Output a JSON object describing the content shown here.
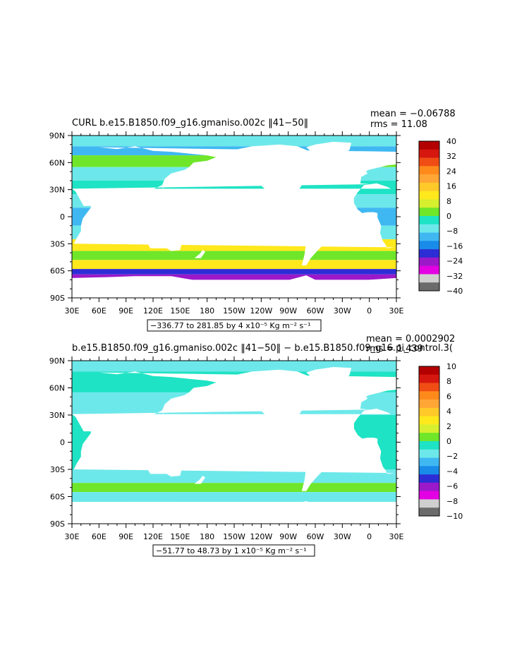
{
  "chart_data": [
    {
      "type": "heatmap",
      "title": "CURL b.e15.B1850.f09_g16.gmaniso.002c ‖41−50‖",
      "stats": [
        "mean = −0.06788",
        "rms = 11.08"
      ],
      "xticks": [
        "30E",
        "60E",
        "90E",
        "120E",
        "150E",
        "180",
        "150W",
        "120W",
        "90W",
        "60W",
        "30W",
        "0",
        "30E"
      ],
      "yticks": [
        "90N",
        "60N",
        "30N",
        "0",
        "30S",
        "60S",
        "90S"
      ],
      "xlim": [
        30,
        390
      ],
      "ylim": [
        -90,
        90
      ],
      "colorbar_labels": [
        "40",
        "32",
        "24",
        "16",
        "8",
        "0",
        "−8",
        "−16",
        "−24",
        "−32",
        "−40"
      ],
      "colorbar_range": [
        -40,
        40
      ],
      "contour_info": "−336.77 to 281.85 by 4 x10⁻⁵ Kg m⁻² s⁻¹",
      "colors": [
        "#6b6b6b",
        "#cfcfcf",
        "#e300e3",
        "#9b19c9",
        "#2d2dd6",
        "#188ce8",
        "#3fb8f2",
        "#6de8ea",
        "#1ee3c4",
        "#6fe62a",
        "#d6ef2e",
        "#ffe81c",
        "#ffc92a",
        "#ffa636",
        "#ff8a1c",
        "#f04d14",
        "#d6170f",
        "#b30000"
      ]
    },
    {
      "type": "heatmap",
      "title": "b.e15.B1850.f09_g16.gmaniso.002c ‖41−50‖ − b.e15.B1850.f09_g16.pi_control.3(",
      "stats": [
        "mean = 0.0002902",
        "rms = 1.439"
      ],
      "xticks": [
        "30E",
        "60E",
        "90E",
        "120E",
        "150E",
        "180",
        "150W",
        "120W",
        "90W",
        "60W",
        "30W",
        "0",
        "30E"
      ],
      "yticks": [
        "90N",
        "60N",
        "30N",
        "0",
        "30S",
        "60S",
        "90S"
      ],
      "xlim": [
        30,
        390
      ],
      "ylim": [
        -90,
        90
      ],
      "colorbar_labels": [
        "10",
        "8",
        "6",
        "4",
        "2",
        "0",
        "−2",
        "−4",
        "−6",
        "−8",
        "−10"
      ],
      "colorbar_range": [
        -10,
        10
      ],
      "contour_info": "−51.77 to 48.73 by 1 x10⁻⁵ Kg m⁻² s⁻¹",
      "colors": [
        "#6b6b6b",
        "#cfcfcf",
        "#e300e3",
        "#9b19c9",
        "#2d2dd6",
        "#188ce8",
        "#3fb8f2",
        "#6de8ea",
        "#1ee3c4",
        "#6fe62a",
        "#d6ef2e",
        "#ffe81c",
        "#ffc92a",
        "#ffa636",
        "#ff8a1c",
        "#f04d14",
        "#d6170f",
        "#b30000"
      ]
    }
  ]
}
